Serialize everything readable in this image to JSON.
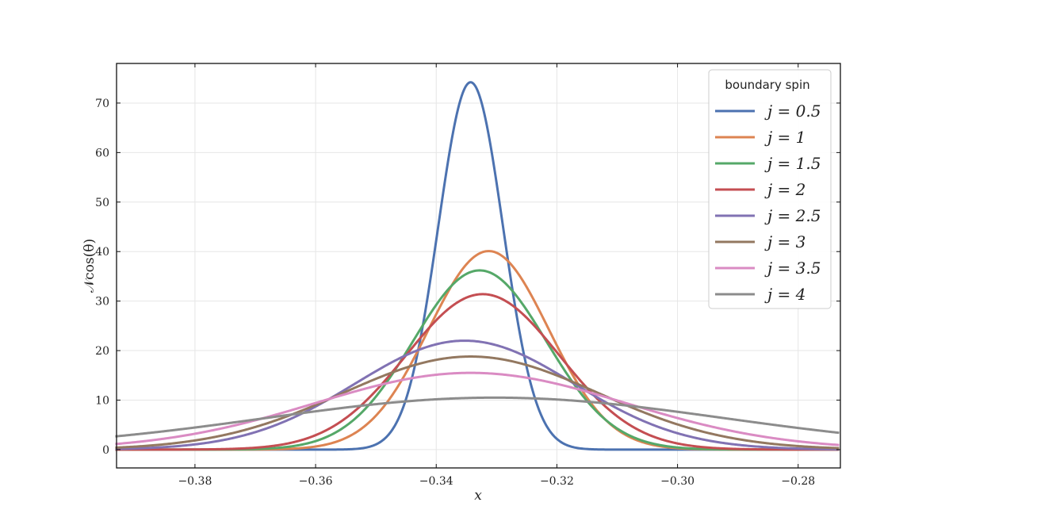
{
  "chart_data": {
    "type": "line",
    "xlabel": "x",
    "ylabel": "𝒩cos(θ)",
    "xlim": [
      -0.393,
      -0.273
    ],
    "ylim": [
      -3.7,
      78
    ],
    "x_ticks": [
      -0.38,
      -0.36,
      -0.34,
      -0.32,
      -0.3,
      -0.28
    ],
    "x_tick_labels": [
      "−0.38",
      "−0.36",
      "−0.34",
      "−0.32",
      "−0.30",
      "−0.28"
    ],
    "y_ticks": [
      0,
      10,
      20,
      30,
      40,
      50,
      60,
      70
    ],
    "y_tick_labels": [
      "0",
      "10",
      "20",
      "30",
      "40",
      "50",
      "60",
      "70"
    ],
    "grid": true,
    "legend": {
      "title": "boundary spin",
      "placement": "top-right"
    },
    "x_range": [
      -0.3932,
      -0.2732
    ],
    "series": [
      {
        "name": "j = 0.5",
        "color": "#4c72b0",
        "peak_x": -0.3343,
        "peak_y": 74.2
      },
      {
        "name": "j = 1",
        "color": "#dd8452",
        "peak_x": -0.3313,
        "peak_y": 40.1
      },
      {
        "name": "j = 1.5",
        "color": "#55a868",
        "peak_x": -0.3328,
        "peak_y": 36.2
      },
      {
        "name": "j = 2",
        "color": "#c44e52",
        "peak_x": -0.3323,
        "peak_y": 31.4
      },
      {
        "name": "j = 2.5",
        "color": "#8172b3",
        "peak_x": -0.3353,
        "peak_y": 22.0
      },
      {
        "name": "j = 3",
        "color": "#937860",
        "peak_x": -0.3343,
        "peak_y": 18.8
      },
      {
        "name": "j = 3.5",
        "color": "#da8bc3",
        "peak_x": -0.3343,
        "peak_y": 15.5
      },
      {
        "name": "j = 4",
        "color": "#8c8c8c",
        "peak_x": -0.3303,
        "peak_y": 10.5
      }
    ]
  }
}
